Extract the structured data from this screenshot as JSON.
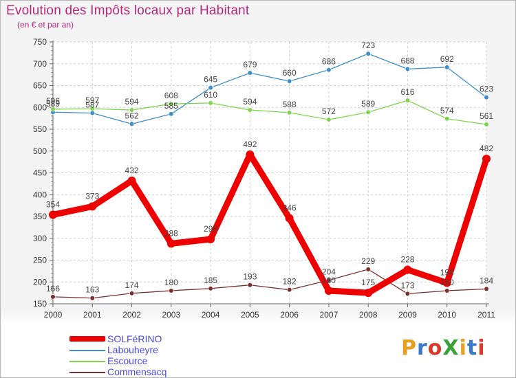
{
  "header": {
    "title": "Evolution des Impôts locaux par Habitant",
    "subtitle": "(en € et par an)"
  },
  "logo": {
    "text": "ProXiti",
    "colors": [
      "#e8a020",
      "#3a78c8",
      "#d83a2a",
      "#3aa03a",
      "#e8a020",
      "#3a78c8",
      "#d83a2a"
    ]
  },
  "chart_data": {
    "type": "line",
    "title": "Evolution des Impôts locaux par Habitant",
    "subtitle": "(en € et par an)",
    "xlabel": "",
    "ylabel": "",
    "x": [
      "2000",
      "2001",
      "2002",
      "2003",
      "2004",
      "2005",
      "2006",
      "2007",
      "2008",
      "2009",
      "2010",
      "2011"
    ],
    "ylim": [
      150,
      750
    ],
    "yticks": [
      "150",
      "200",
      "250",
      "300",
      "350",
      "400",
      "450",
      "500",
      "550",
      "600",
      "650",
      "700",
      "750"
    ],
    "grid": true,
    "legend_position": "bottom-left",
    "series": [
      {
        "name": "Labouheyre",
        "color": "#3d8ec9",
        "values": [
          589,
          587,
          562,
          585,
          645,
          679,
          660,
          686,
          723,
          688,
          692,
          623
        ]
      },
      {
        "name": "Escource",
        "color": "#7fd44f",
        "values": [
          596,
          597,
          594,
          608,
          610,
          594,
          588,
          572,
          589,
          616,
          574,
          561
        ]
      },
      {
        "name": "Commensacq",
        "color": "#7a2f2f",
        "values": [
          166,
          163,
          174,
          180,
          185,
          193,
          182,
          204,
          229,
          173,
          180,
          184
        ]
      },
      {
        "name": "SOLFéRINO",
        "color": "#ee0000",
        "values": [
          354,
          373,
          432,
          288,
          298,
          492,
          346,
          180,
          175,
          228,
          198,
          482
        ]
      }
    ]
  }
}
